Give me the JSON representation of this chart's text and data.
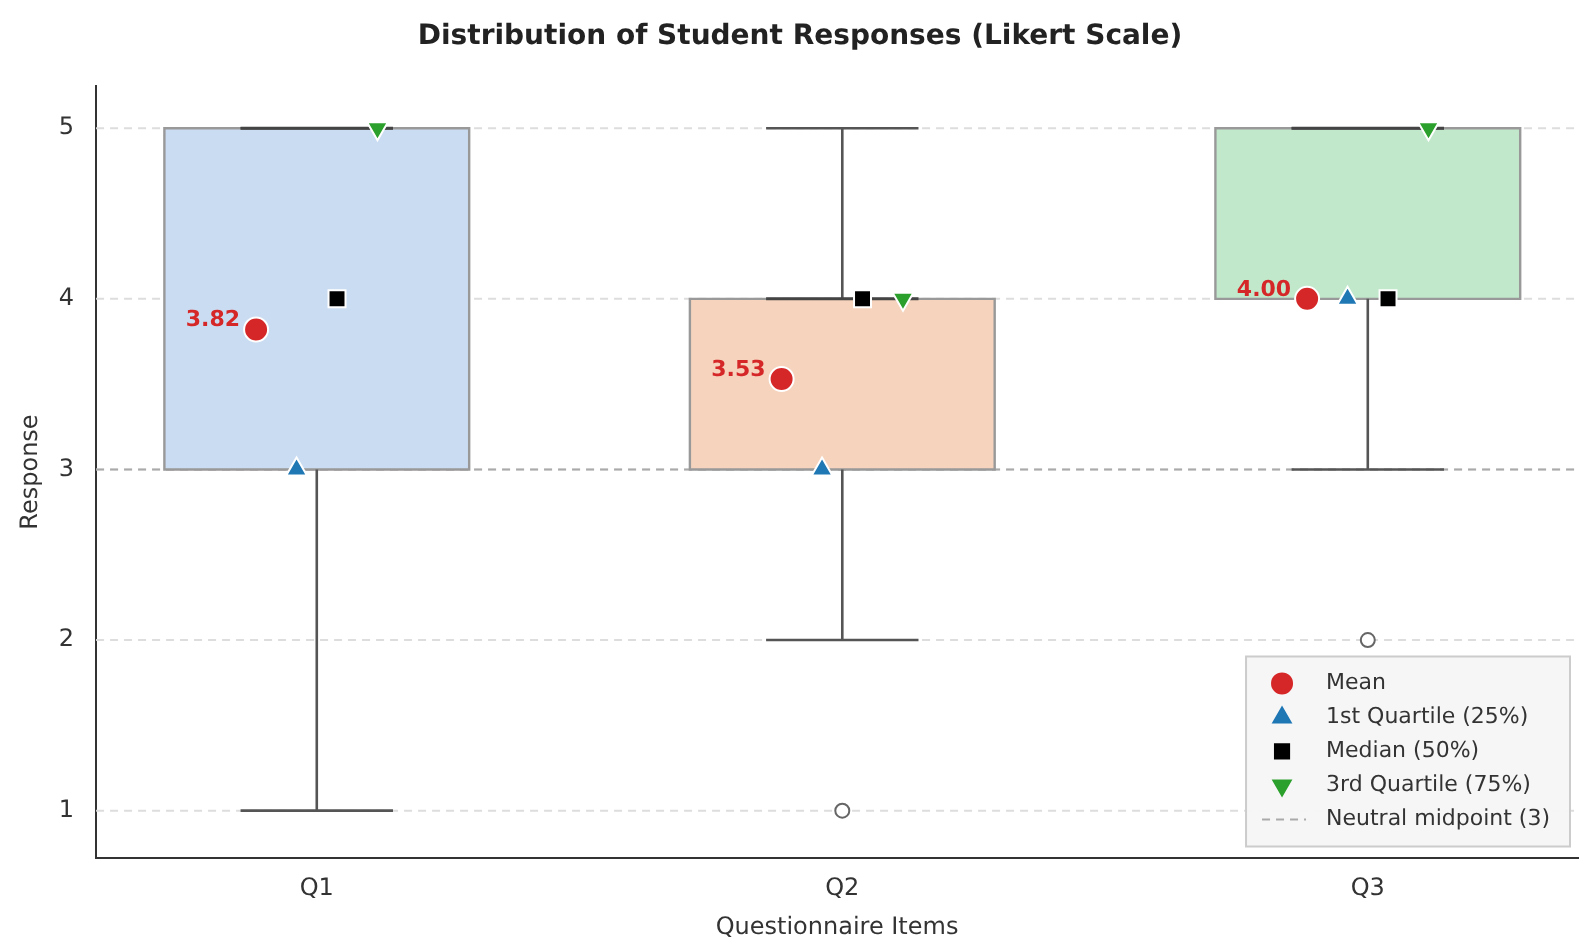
{
  "chart_data": {
    "type": "box",
    "title": "Distribution of Student Responses (Likert Scale)",
    "xlabel": "Questionnaire Items",
    "ylabel": "Response",
    "categories": [
      "Q1",
      "Q2",
      "Q3"
    ],
    "boxes": [
      {
        "low": 1,
        "q1": 3,
        "median": 5,
        "q3": 5,
        "high": 5
      },
      {
        "low": 2,
        "q1": 3,
        "median": 4,
        "q3": 4,
        "high": 5,
        "outliers": [
          1
        ]
      },
      {
        "low": 3,
        "q1": 4,
        "median": 5,
        "q3": 5,
        "high": 5,
        "outliers": [
          2
        ]
      }
    ],
    "colors": [
      "#cadcf1",
      "#f5d3bd",
      "#c2e8cc"
    ],
    "series": [
      {
        "type": "scatter",
        "name": "Mean",
        "color": "#d62728",
        "marker": "circle",
        "x": [
          "Q1",
          "Q2",
          "Q3"
        ],
        "values": [
          3.82,
          3.53,
          4.0
        ],
        "value_labels": [
          "3.82",
          "3.53",
          "4.00"
        ]
      },
      {
        "type": "scatter",
        "name": "1st Quartile (25%)",
        "color": "#1f77b4",
        "marker": "triangle",
        "x": [
          "Q1",
          "Q2",
          "Q3"
        ],
        "values": [
          3,
          3,
          4
        ]
      },
      {
        "type": "scatter",
        "name": "Median (50%)",
        "color": "#000000",
        "marker": "square",
        "x": [
          "Q1",
          "Q2",
          "Q3"
        ],
        "values": [
          4,
          4,
          4
        ]
      },
      {
        "type": "scatter",
        "name": "3rd Quartile (75%)",
        "color": "#2ca02c",
        "marker": "triangle-down",
        "x": [
          "Q1",
          "Q2",
          "Q3"
        ],
        "values": [
          5,
          4,
          5
        ]
      }
    ],
    "ref_lines": [
      {
        "axis": "y",
        "value": 3,
        "label": "Neutral midpoint (3)",
        "color": "#aaaaaa",
        "line_style": "dashed"
      }
    ],
    "ylim": [
      0.72,
      5.25
    ],
    "yticks": [
      1,
      2,
      3,
      4,
      5
    ],
    "grid": "y",
    "legend": "bottom right"
  }
}
